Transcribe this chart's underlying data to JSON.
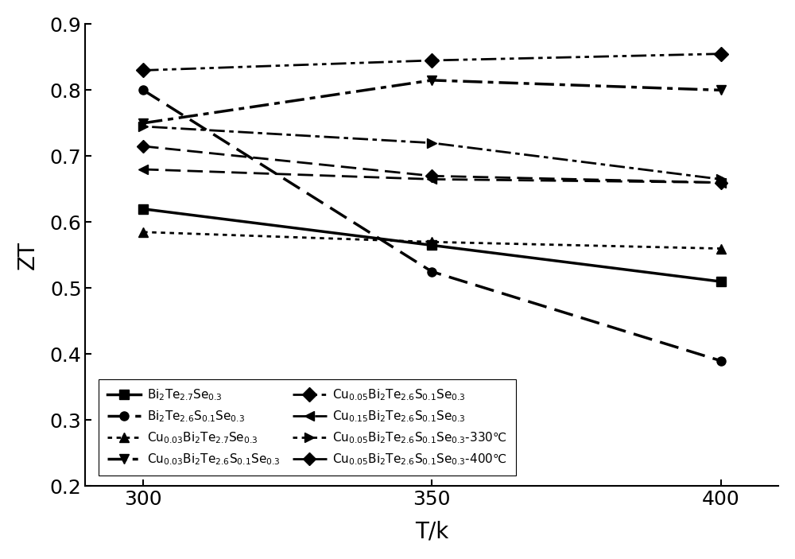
{
  "x": [
    300,
    350,
    400
  ],
  "series": [
    {
      "label": "Bi$_2$Te$_{2.7}$Se$_{0.3}$",
      "y": [
        0.62,
        0.565,
        0.51
      ],
      "ls": "-",
      "marker": "s",
      "lw": 2.5,
      "ms": 8
    },
    {
      "label": "Bi$_2$Te$_{2.6}$S$_{0.1}$Se$_{0.3}$",
      "y": [
        0.8,
        0.525,
        0.39
      ],
      "ls": "--",
      "marker": "o",
      "lw": 2.5,
      "ms": 8
    },
    {
      "label": "Cu$_{0.03}$Bi$_2$Te$_{2.7}$Se$_{0.3}$",
      "y": [
        0.585,
        0.57,
        0.56
      ],
      "ls": ":",
      "marker": "^",
      "lw": 2.0,
      "ms": 8
    },
    {
      "label": "Cu$_{0.03}$Bi$_2$Te$_{2.6}$S$_{0.1}$Se$_{0.3}$",
      "y": [
        0.75,
        0.815,
        0.8
      ],
      "ls": "-.",
      "marker": "v",
      "lw": 2.5,
      "ms": 9
    },
    {
      "label": "Cu$_{0.05}$Bi$_2$Te$_{2.6}$S$_{0.1}$Se$_{0.3}$",
      "y": [
        0.83,
        0.845,
        0.855
      ],
      "ls": "dashdotdot",
      "marker": "D",
      "lw": 2.0,
      "ms": 9
    },
    {
      "label": "Cu$_{0.15}$Bi$_2$Te$_{2.6}$S$_{0.1}$Se$_{0.3}$",
      "y": [
        0.68,
        0.665,
        0.66
      ],
      "ls": "--",
      "marker": "<",
      "lw": 2.0,
      "ms": 9
    },
    {
      "label": "Cu$_{0.05}$Bi$_2$Te$_{2.6}$S$_{0.1}$Se$_{0.3}$-330℃",
      "y": [
        0.745,
        0.72,
        0.665
      ],
      "ls": "dotdash",
      "marker": ">",
      "lw": 2.0,
      "ms": 9
    },
    {
      "label": "Cu$_{0.05}$Bi$_2$Te$_{2.6}$S$_{0.1}$Se$_{0.3}$-400℃",
      "y": [
        0.715,
        0.67,
        0.66
      ],
      "ls": "--",
      "marker": "D",
      "lw": 2.0,
      "ms": 8
    }
  ],
  "xlabel": "T/k",
  "ylabel": "ZT",
  "ylim": [
    0.2,
    0.9
  ],
  "xlim": [
    290,
    410
  ],
  "yticks": [
    0.2,
    0.3,
    0.4,
    0.5,
    0.6,
    0.7,
    0.8,
    0.9
  ],
  "xticks": [
    300,
    350,
    400
  ],
  "background_color": "#ffffff",
  "figsize": [
    10.0,
    7.03
  ],
  "dpi": 100
}
